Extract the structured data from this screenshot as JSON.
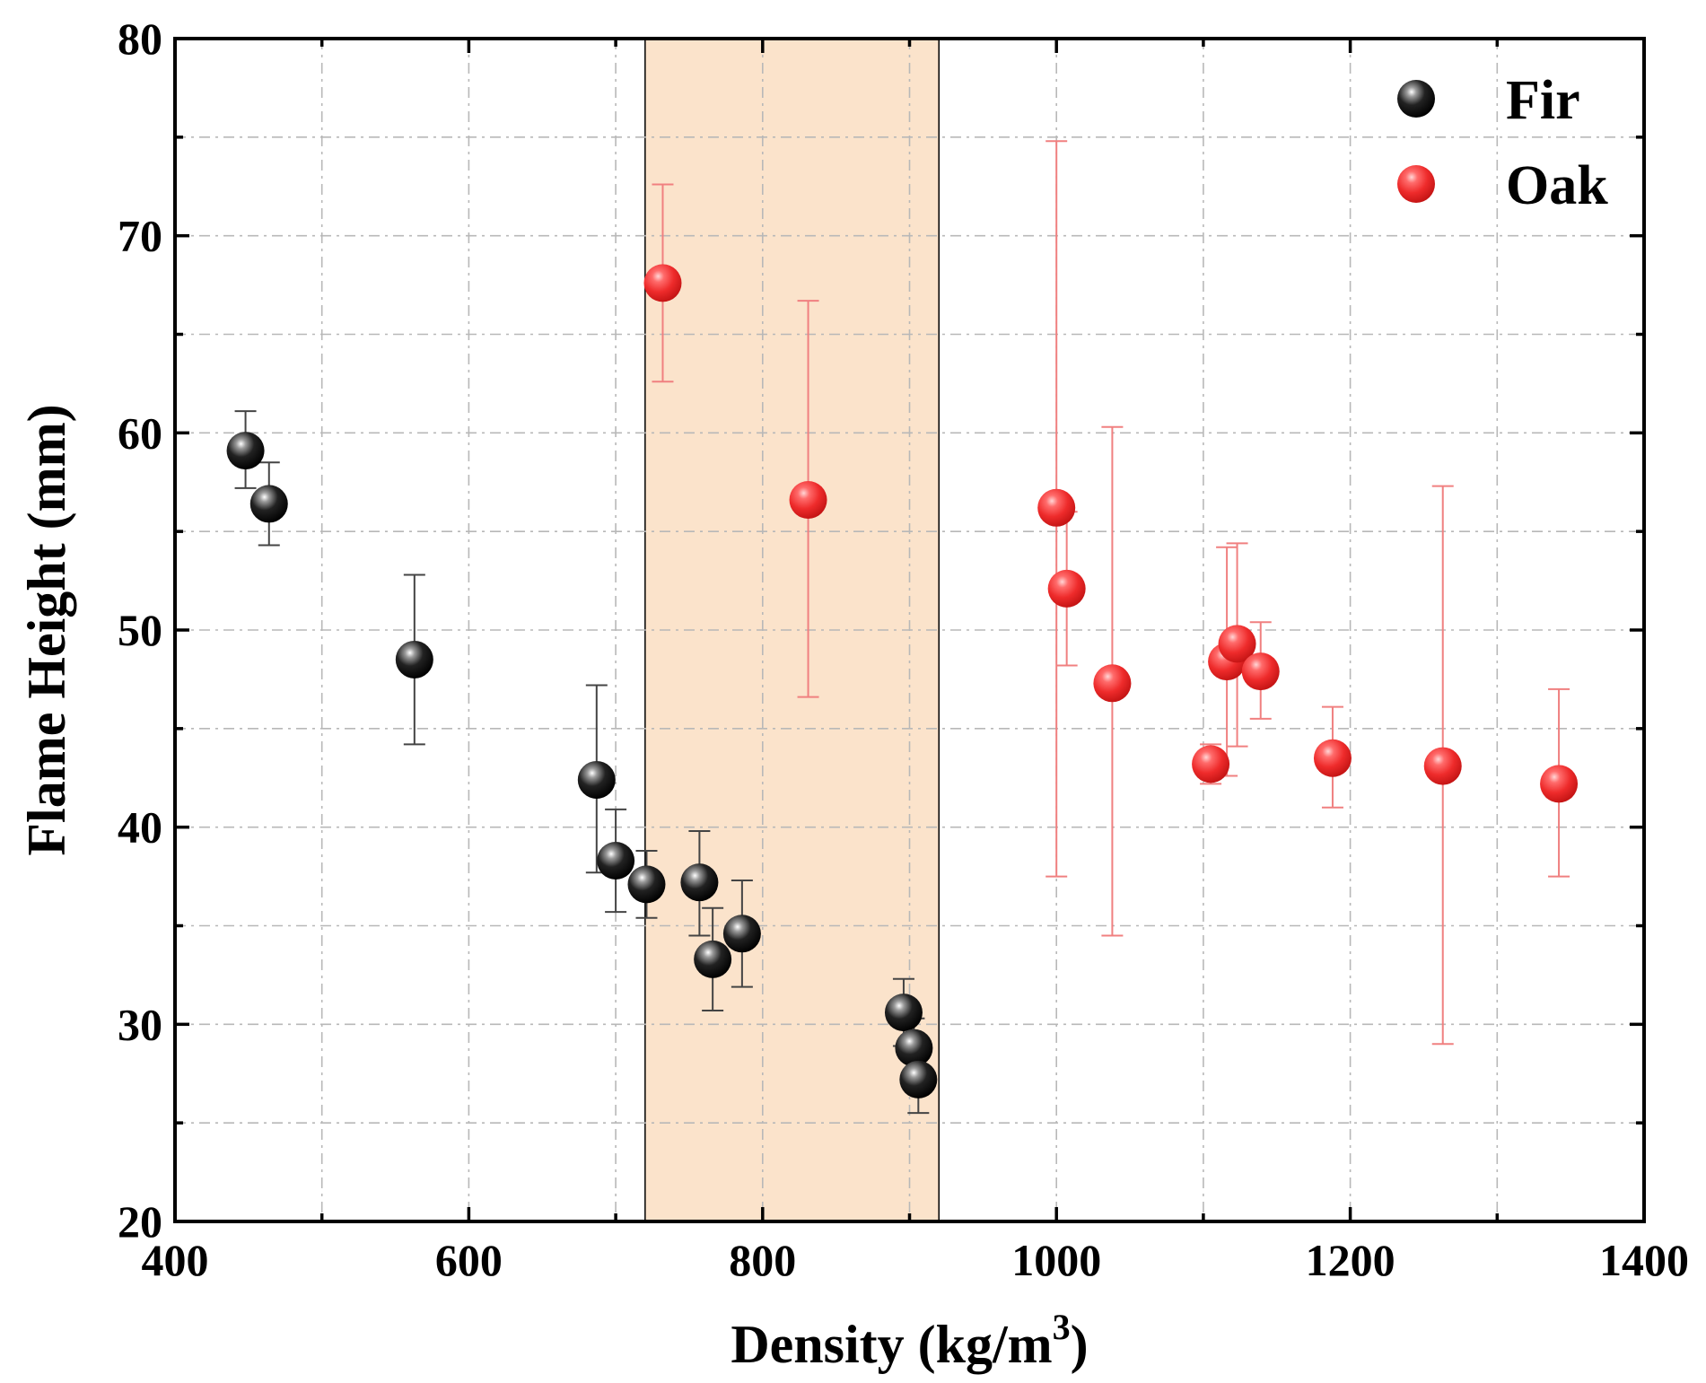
{
  "chart_data": {
    "type": "scatter",
    "title": "",
    "xlabel": "Density (kg/m",
    "xlabel_sup": "3",
    "xlabel_close": ")",
    "ylabel": "Flame Height (mm)",
    "xlim": [
      400,
      1400
    ],
    "ylim": [
      20,
      80
    ],
    "x_major_ticks": [
      400,
      600,
      800,
      1000,
      1200,
      1400
    ],
    "x_tick_labels": [
      "400",
      "600",
      "800",
      "1000",
      "1200",
      "1400"
    ],
    "x_minor_ticks": [
      500,
      700,
      900,
      1100,
      1300
    ],
    "y_major_ticks": [
      20,
      30,
      40,
      50,
      60,
      70,
      80
    ],
    "y_tick_labels": [
      "20",
      "30",
      "40",
      "50",
      "60",
      "70",
      "80"
    ],
    "y_minor_ticks": [
      25,
      35,
      45,
      55,
      65,
      75
    ],
    "grid": true,
    "legend_position": "top-right",
    "highlight_band": {
      "x_start": 720,
      "x_end": 920,
      "color": "#fbe3cb"
    },
    "series": [
      {
        "name": "Fir",
        "color": "#111111",
        "errorbar_color": "#444444",
        "points": [
          {
            "x": 448,
            "y": 59.1,
            "lo": 57.2,
            "hi": 61.1
          },
          {
            "x": 464,
            "y": 56.4,
            "lo": 54.3,
            "hi": 58.5
          },
          {
            "x": 563,
            "y": 48.5,
            "lo": 44.2,
            "hi": 52.8
          },
          {
            "x": 687,
            "y": 42.4,
            "lo": 37.7,
            "hi": 47.2
          },
          {
            "x": 700,
            "y": 38.3,
            "lo": 35.7,
            "hi": 40.9
          },
          {
            "x": 721,
            "y": 37.1,
            "lo": 35.4,
            "hi": 38.8
          },
          {
            "x": 757,
            "y": 37.2,
            "lo": 34.5,
            "hi": 39.8
          },
          {
            "x": 766,
            "y": 33.3,
            "lo": 30.7,
            "hi": 35.9
          },
          {
            "x": 786,
            "y": 34.6,
            "lo": 31.9,
            "hi": 37.3
          },
          {
            "x": 896,
            "y": 30.6,
            "lo": 28.9,
            "hi": 32.3
          },
          {
            "x": 903,
            "y": 28.8,
            "lo": 27.3,
            "hi": 30.3
          },
          {
            "x": 906,
            "y": 27.2,
            "lo": 25.5,
            "hi": 28.9
          }
        ]
      },
      {
        "name": "Oak",
        "color": "#ee2b2b",
        "errorbar_color": "#f08080",
        "points": [
          {
            "x": 732,
            "y": 67.6,
            "lo": 62.6,
            "hi": 72.6
          },
          {
            "x": 831,
            "y": 56.6,
            "lo": 46.6,
            "hi": 66.7
          },
          {
            "x": 1000,
            "y": 56.2,
            "lo": 37.5,
            "hi": 74.8
          },
          {
            "x": 1007,
            "y": 52.1,
            "lo": 48.2,
            "hi": 56.0
          },
          {
            "x": 1038,
            "y": 47.3,
            "lo": 34.5,
            "hi": 60.3
          },
          {
            "x": 1105,
            "y": 43.2,
            "lo": 42.2,
            "hi": 44.2
          },
          {
            "x": 1116,
            "y": 48.4,
            "lo": 42.6,
            "hi": 54.2
          },
          {
            "x": 1123,
            "y": 49.3,
            "lo": 44.1,
            "hi": 54.4
          },
          {
            "x": 1139,
            "y": 47.9,
            "lo": 45.5,
            "hi": 50.4
          },
          {
            "x": 1188,
            "y": 43.5,
            "lo": 41.0,
            "hi": 46.1
          },
          {
            "x": 1263,
            "y": 43.1,
            "lo": 29.0,
            "hi": 57.3
          },
          {
            "x": 1342,
            "y": 42.2,
            "lo": 37.5,
            "hi": 47.0
          }
        ]
      }
    ]
  }
}
